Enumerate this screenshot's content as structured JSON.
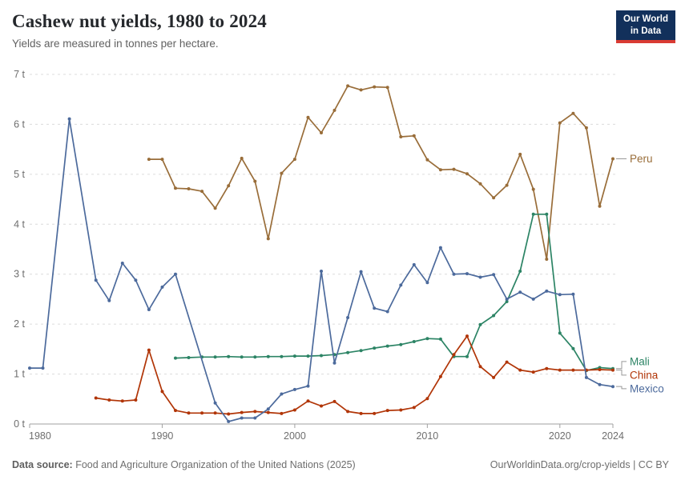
{
  "header": {
    "title": "Cashew nut yields, 1980 to 2024",
    "subtitle": "Yields are measured in tonnes per hectare.",
    "logo_line1": "Our World",
    "logo_line2": "in Data"
  },
  "footer": {
    "source_label": "Data source:",
    "source_text": " Food and Agriculture Organization of the United Nations (2025)",
    "link_text": "OurWorldinData.org/crop-yields | CC BY"
  },
  "colors": {
    "logo_navy": "#12305B",
    "logo_red": "#D93B33",
    "gridline": "#dcdcdc",
    "axis_line": "#a1a1a1",
    "tick_text": "#6e6e6e"
  },
  "chart_data": {
    "type": "line",
    "title": "Cashew nut yields, 1980 to 2024",
    "ylabel": "tonnes per hectare",
    "x_range": [
      1980,
      2024
    ],
    "y_range": [
      0,
      7
    ],
    "grid": true,
    "legend_position": "right-of-line-ends",
    "y_ticks": [
      0,
      1,
      2,
      3,
      4,
      5,
      6,
      7
    ],
    "y_tick_labels": [
      "0 t",
      "1 t",
      "2 t",
      "3 t",
      "4 t",
      "5 t",
      "6 t",
      "7 t"
    ],
    "x_ticks": [
      1980,
      1990,
      2000,
      2010,
      2020,
      2024
    ],
    "x_tick_labels": [
      "1980",
      "1990",
      "2000",
      "2010",
      "2020",
      "2024"
    ],
    "series": [
      {
        "name": "Peru",
        "color": "#996D39",
        "points": [
          [
            1989,
            5.3
          ],
          [
            1990,
            5.3
          ],
          [
            1991,
            4.72
          ],
          [
            1992,
            4.71
          ],
          [
            1993,
            4.66
          ],
          [
            1994,
            4.32
          ],
          [
            1995,
            4.77
          ],
          [
            1996,
            5.32
          ],
          [
            1997,
            4.86
          ],
          [
            1998,
            3.71
          ],
          [
            1999,
            5.02
          ],
          [
            2000,
            5.3
          ],
          [
            2001,
            6.14
          ],
          [
            2002,
            5.83
          ],
          [
            2003,
            6.28
          ],
          [
            2004,
            6.77
          ],
          [
            2005,
            6.69
          ],
          [
            2006,
            6.75
          ],
          [
            2007,
            6.74
          ],
          [
            2008,
            5.75
          ],
          [
            2009,
            5.77
          ],
          [
            2010,
            5.29
          ],
          [
            2011,
            5.09
          ],
          [
            2012,
            5.1
          ],
          [
            2013,
            5.01
          ],
          [
            2014,
            4.81
          ],
          [
            2015,
            4.53
          ],
          [
            2016,
            4.78
          ],
          [
            2017,
            5.4
          ],
          [
            2018,
            4.7
          ],
          [
            2019,
            3.3
          ],
          [
            2020,
            6.03
          ],
          [
            2021,
            6.22
          ],
          [
            2022,
            5.93
          ],
          [
            2023,
            4.36
          ],
          [
            2024,
            5.31
          ]
        ]
      },
      {
        "name": "Mali",
        "color": "#2C8465",
        "points": [
          [
            1991,
            1.32
          ],
          [
            1992,
            1.33
          ],
          [
            1993,
            1.34
          ],
          [
            1994,
            1.34
          ],
          [
            1995,
            1.35
          ],
          [
            1996,
            1.34
          ],
          [
            1997,
            1.34
          ],
          [
            1998,
            1.35
          ],
          [
            1999,
            1.35
          ],
          [
            2000,
            1.36
          ],
          [
            2001,
            1.36
          ],
          [
            2002,
            1.37
          ],
          [
            2003,
            1.39
          ],
          [
            2004,
            1.43
          ],
          [
            2005,
            1.47
          ],
          [
            2006,
            1.52
          ],
          [
            2007,
            1.56
          ],
          [
            2008,
            1.59
          ],
          [
            2009,
            1.65
          ],
          [
            2010,
            1.71
          ],
          [
            2011,
            1.7
          ],
          [
            2012,
            1.35
          ],
          [
            2013,
            1.35
          ],
          [
            2014,
            1.99
          ],
          [
            2015,
            2.17
          ],
          [
            2016,
            2.45
          ],
          [
            2017,
            3.06
          ],
          [
            2018,
            4.2
          ],
          [
            2019,
            4.2
          ],
          [
            2020,
            1.82
          ],
          [
            2021,
            1.51
          ],
          [
            2022,
            1.07
          ],
          [
            2023,
            1.13
          ],
          [
            2024,
            1.11
          ]
        ]
      },
      {
        "name": "China",
        "color": "#B13507",
        "points": [
          [
            1985,
            0.52
          ],
          [
            1986,
            0.48
          ],
          [
            1987,
            0.46
          ],
          [
            1988,
            0.48
          ],
          [
            1989,
            1.48
          ],
          [
            1990,
            0.65
          ],
          [
            1991,
            0.27
          ],
          [
            1992,
            0.22
          ],
          [
            1993,
            0.22
          ],
          [
            1994,
            0.22
          ],
          [
            1995,
            0.2
          ],
          [
            1996,
            0.23
          ],
          [
            1997,
            0.25
          ],
          [
            1998,
            0.23
          ],
          [
            1999,
            0.21
          ],
          [
            2000,
            0.28
          ],
          [
            2001,
            0.46
          ],
          [
            2002,
            0.36
          ],
          [
            2003,
            0.45
          ],
          [
            2004,
            0.25
          ],
          [
            2005,
            0.21
          ],
          [
            2006,
            0.21
          ],
          [
            2007,
            0.27
          ],
          [
            2008,
            0.28
          ],
          [
            2009,
            0.33
          ],
          [
            2010,
            0.51
          ],
          [
            2011,
            0.95
          ],
          [
            2012,
            1.39
          ],
          [
            2013,
            1.76
          ],
          [
            2014,
            1.15
          ],
          [
            2015,
            0.93
          ],
          [
            2016,
            1.24
          ],
          [
            2017,
            1.08
          ],
          [
            2018,
            1.04
          ],
          [
            2019,
            1.11
          ],
          [
            2020,
            1.08
          ],
          [
            2021,
            1.08
          ],
          [
            2022,
            1.08
          ],
          [
            2023,
            1.09
          ],
          [
            2024,
            1.08
          ]
        ]
      },
      {
        "name": "Mexico",
        "color": "#4C6A9C",
        "points": [
          [
            1980,
            1.12
          ],
          [
            1981,
            1.12
          ],
          [
            1983,
            6.11
          ],
          [
            1985,
            2.88
          ],
          [
            1986,
            2.47
          ],
          [
            1987,
            3.22
          ],
          [
            1988,
            2.88
          ],
          [
            1989,
            2.29
          ],
          [
            1990,
            2.74
          ],
          [
            1991,
            3.0
          ],
          [
            1994,
            0.42
          ],
          [
            1995,
            0.05
          ],
          [
            1996,
            0.12
          ],
          [
            1997,
            0.12
          ],
          [
            1998,
            0.3
          ],
          [
            1999,
            0.6
          ],
          [
            2000,
            0.69
          ],
          [
            2001,
            0.76
          ],
          [
            2002,
            3.06
          ],
          [
            2003,
            1.22
          ],
          [
            2004,
            2.13
          ],
          [
            2005,
            3.05
          ],
          [
            2006,
            2.32
          ],
          [
            2007,
            2.25
          ],
          [
            2008,
            2.78
          ],
          [
            2009,
            3.19
          ],
          [
            2010,
            2.83
          ],
          [
            2011,
            3.53
          ],
          [
            2012,
            3.0
          ],
          [
            2013,
            3.01
          ],
          [
            2014,
            2.94
          ],
          [
            2015,
            2.99
          ],
          [
            2016,
            2.5
          ],
          [
            2017,
            2.64
          ],
          [
            2018,
            2.5
          ],
          [
            2019,
            2.66
          ],
          [
            2020,
            2.59
          ],
          [
            2021,
            2.6
          ],
          [
            2022,
            0.93
          ],
          [
            2023,
            0.79
          ],
          [
            2024,
            0.75
          ]
        ]
      }
    ]
  }
}
